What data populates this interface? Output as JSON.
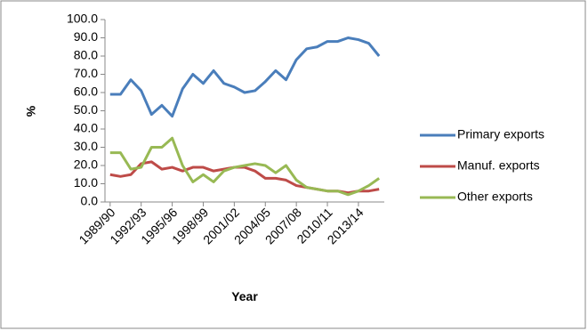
{
  "chart_data": {
    "type": "line",
    "x_label": "Year",
    "y_label": "%",
    "categories": [
      "1989/90",
      null,
      null,
      "1992/93",
      null,
      null,
      "1995/96",
      null,
      null,
      "1998/99",
      null,
      null,
      "2001/02",
      null,
      null,
      "2004/05",
      null,
      null,
      "2007/08",
      null,
      null,
      "2010/11",
      null,
      null,
      "2013/14",
      null,
      null
    ],
    "series": [
      {
        "name": "Primary exports",
        "color": "#4a7ebb",
        "values": [
          59,
          59,
          67,
          61,
          48,
          53,
          47,
          62,
          70,
          65,
          72,
          65,
          63,
          60,
          61,
          66,
          72,
          67,
          78,
          84,
          85,
          88,
          88,
          90,
          89,
          87,
          80
        ]
      },
      {
        "name": "Manuf. exports",
        "color": "#be4b48",
        "values": [
          15,
          14,
          15,
          21,
          22,
          18,
          19,
          17,
          19,
          19,
          17,
          18,
          19,
          19,
          17,
          13,
          13,
          12,
          9,
          8,
          7,
          6,
          6,
          5,
          6,
          6,
          7
        ]
      },
      {
        "name": "Other exports",
        "color": "#98b954",
        "values": [
          27,
          27,
          18,
          19,
          30,
          30,
          35,
          20,
          11,
          15,
          11,
          17,
          19,
          20,
          21,
          20,
          16,
          20,
          12,
          8,
          7,
          6,
          6,
          4,
          6,
          9,
          13
        ]
      }
    ],
    "ylim": [
      0,
      100
    ],
    "yticks": [
      {
        "value": 0,
        "label": "0.0"
      },
      {
        "value": 10,
        "label": "10.0"
      },
      {
        "value": 20,
        "label": "20.0"
      },
      {
        "value": 30,
        "label": "30.0"
      },
      {
        "value": 40,
        "label": "40.0"
      },
      {
        "value": 50,
        "label": "50.0"
      },
      {
        "value": 60,
        "label": "60.0"
      },
      {
        "value": 70,
        "label": "70.0"
      },
      {
        "value": 80,
        "label": "80.0"
      },
      {
        "value": 90,
        "label": "90.0"
      },
      {
        "value": 100,
        "label": "100.0"
      }
    ],
    "grid": false,
    "legend": "right"
  }
}
